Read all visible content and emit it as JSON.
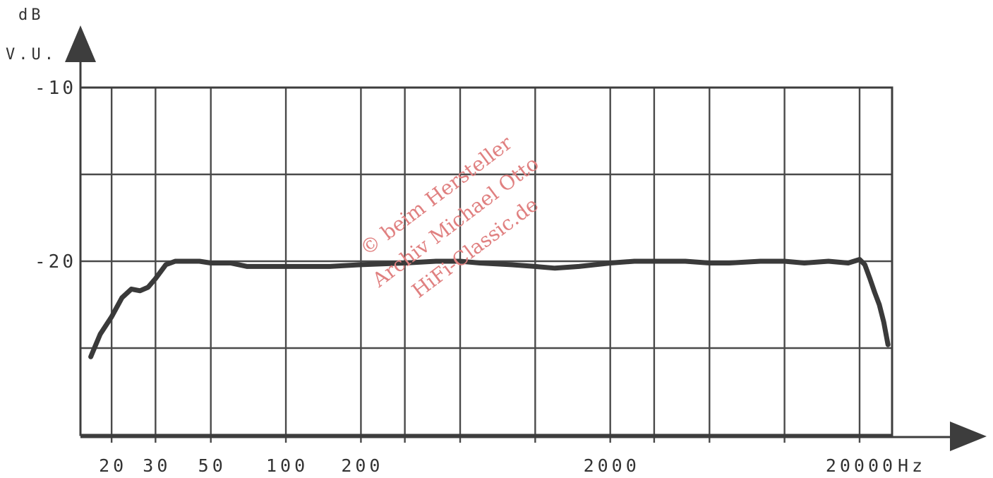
{
  "chart_data": {
    "type": "line",
    "title": "",
    "ylabel_lines": [
      "dB",
      "V.U."
    ],
    "xunit": "Hz",
    "x_scale": "log",
    "xlim": [
      15,
      27000
    ],
    "ylim": [
      -30,
      -10
    ],
    "yticks": [
      {
        "value": -10,
        "label": "-10"
      },
      {
        "value": -20,
        "label": "-20"
      }
    ],
    "xticks": [
      {
        "value": 20,
        "label": "20"
      },
      {
        "value": 30,
        "label": "30"
      },
      {
        "value": 50,
        "label": "50"
      },
      {
        "value": 100,
        "label": "100"
      },
      {
        "value": 200,
        "label": "200"
      },
      {
        "value": 2000,
        "label": "2000"
      },
      {
        "value": 20000,
        "label": "20000"
      }
    ],
    "grid": true,
    "series": [
      {
        "x": [
          16.5,
          18,
          20,
          22,
          24,
          26,
          28,
          30,
          33,
          36,
          40,
          45,
          50,
          60,
          70,
          80,
          100,
          150,
          200,
          300,
          400,
          500,
          600,
          800,
          1000,
          1200,
          1500,
          2000,
          2500,
          3000,
          4000,
          5000,
          6000,
          8000,
          10000,
          12000,
          15000,
          18000,
          20000,
          21000,
          22000,
          23000,
          24000,
          25000,
          26000
        ],
        "y": [
          -25.5,
          -24.2,
          -23.2,
          -22.1,
          -21.6,
          -21.7,
          -21.5,
          -21.0,
          -20.2,
          -20.0,
          -20.0,
          -20.0,
          -20.1,
          -20.1,
          -20.3,
          -20.3,
          -20.3,
          -20.3,
          -20.2,
          -20.1,
          -20.0,
          -20.0,
          -20.1,
          -20.2,
          -20.3,
          -20.4,
          -20.3,
          -20.1,
          -20.0,
          -20.0,
          -20.0,
          -20.1,
          -20.1,
          -20.0,
          -20.0,
          -20.1,
          -20.0,
          -20.1,
          -19.9,
          -20.2,
          -21.0,
          -21.8,
          -22.5,
          -23.5,
          -24.8
        ]
      }
    ],
    "watermark": [
      "© beim Hersteller",
      "Archiv Michael Otto",
      "HiFi-Classic.de"
    ]
  }
}
